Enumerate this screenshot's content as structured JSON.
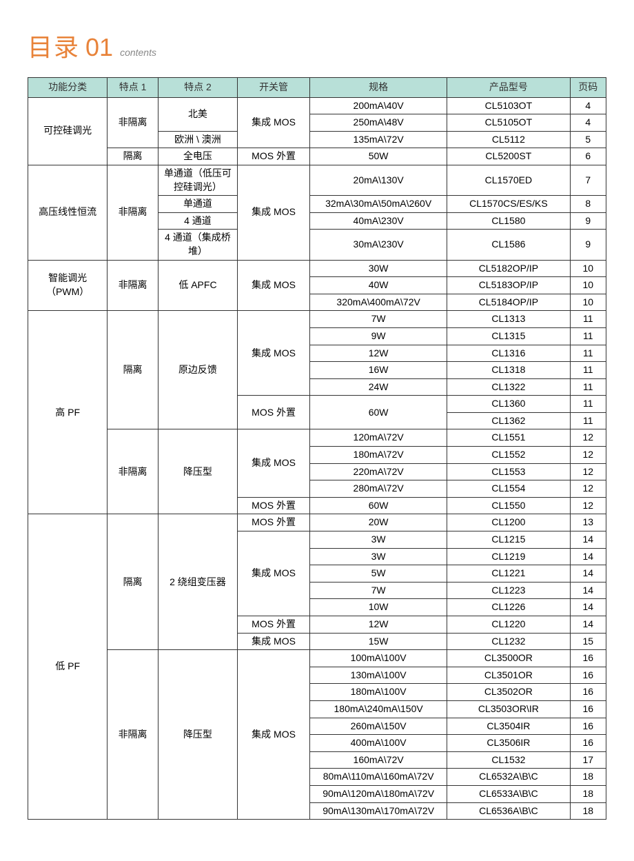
{
  "title": {
    "main": "目录",
    "num": "01",
    "sub": "contents"
  },
  "headers": [
    "功能分类",
    "特点 1",
    "特点 2",
    "开关管",
    "规格",
    "产品型号",
    "页码"
  ],
  "colors": {
    "accent": "#e8833a",
    "header_bg": "#b8e0d8",
    "border": "#333333",
    "subtitle": "#888888"
  },
  "rows": [
    {
      "c1": "可控硅调光",
      "c1r": 4,
      "c2": "非隔离",
      "c2r": 3,
      "c3": "北美",
      "c3r": 2,
      "c4": "集成 MOS",
      "c4r": 3,
      "c5": "200mA\\40V",
      "c6": "CL5103OT",
      "c7": "4"
    },
    {
      "c5": "250mA\\48V",
      "c6": "CL5105OT",
      "c7": "4"
    },
    {
      "c3": "欧洲 \\ 澳洲",
      "c5": "135mA\\72V",
      "c6": "CL5112",
      "c7": "5"
    },
    {
      "c2": "隔离",
      "c3": "全电压",
      "c4": "MOS 外置",
      "c5": "50W",
      "c6": "CL5200ST",
      "c7": "6"
    },
    {
      "c1": "高压线性恒流",
      "c1r": 4,
      "c2": "非隔离",
      "c2r": 4,
      "c3": "单通道（低压可控硅调光）",
      "c4": "集成 MOS",
      "c4r": 4,
      "c5": "20mA\\130V",
      "c6": "CL1570ED",
      "c7": "7"
    },
    {
      "c3": "单通道",
      "c5": "32mA\\30mA\\50mA\\260V",
      "c6": "CL1570CS/ES/KS",
      "c7": "8"
    },
    {
      "c3": "4 通道",
      "c5": "40mA\\230V",
      "c6": "CL1580",
      "c7": "9"
    },
    {
      "c3": "4 通道（集成桥堆）",
      "c5": "30mA\\230V",
      "c6": "CL1586",
      "c7": "9"
    },
    {
      "c1": "智能调光（PWM）",
      "c1r": 3,
      "c2": "非隔离",
      "c2r": 3,
      "c3": "低 APFC",
      "c3r": 3,
      "c4": "集成 MOS",
      "c4r": 3,
      "c5": "30W",
      "c6": "CL5182OP/IP",
      "c7": "10"
    },
    {
      "c5": "40W",
      "c6": "CL5183OP/IP",
      "c7": "10"
    },
    {
      "c5": "320mA\\400mA\\72V",
      "c6": "CL5184OP/IP",
      "c7": "10"
    },
    {
      "c1": "高 PF",
      "c1r": 12,
      "c2": "隔离",
      "c2r": 7,
      "c3": "原边反馈",
      "c3r": 7,
      "c4": "集成 MOS",
      "c4r": 5,
      "c5": "7W",
      "c6": "CL1313",
      "c7": "11"
    },
    {
      "c5": "9W",
      "c6": "CL1315",
      "c7": "11"
    },
    {
      "c5": "12W",
      "c6": "CL1316",
      "c7": "11"
    },
    {
      "c5": "16W",
      "c6": "CL1318",
      "c7": "11"
    },
    {
      "c5": "24W",
      "c6": "CL1322",
      "c7": "11"
    },
    {
      "c4": "MOS 外置",
      "c4r": 2,
      "c5": "60W",
      "c5r": 2,
      "c6": "CL1360",
      "c7": "11"
    },
    {
      "c6": "CL1362",
      "c7": "11"
    },
    {
      "c2": "非隔离",
      "c2r": 5,
      "c3": "降压型",
      "c3r": 5,
      "c4": "集成 MOS",
      "c4r": 4,
      "c5": "120mA\\72V",
      "c6": "CL1551",
      "c7": "12"
    },
    {
      "c5": "180mA\\72V",
      "c6": "CL1552",
      "c7": "12"
    },
    {
      "c5": "220mA\\72V",
      "c6": "CL1553",
      "c7": "12"
    },
    {
      "c5": "280mA\\72V",
      "c6": "CL1554",
      "c7": "12"
    },
    {
      "c4": "MOS 外置",
      "c5": "60W",
      "c6": "CL1550",
      "c7": "12"
    },
    {
      "c1": "低 PF",
      "c1r": 18,
      "c2": "隔离",
      "c2r": 8,
      "c3": "2 绕组变压器",
      "c3r": 8,
      "c4": "MOS 外置",
      "c5": "20W",
      "c6": "CL1200",
      "c7": "13"
    },
    {
      "c4": "集成 MOS",
      "c4r": 5,
      "c5": "3W",
      "c6": "CL1215",
      "c7": "14"
    },
    {
      "c5": "3W",
      "c6": "CL1219",
      "c7": "14"
    },
    {
      "c5": "5W",
      "c6": "CL1221",
      "c7": "14"
    },
    {
      "c5": "7W",
      "c6": "CL1223",
      "c7": "14"
    },
    {
      "c5": "10W",
      "c6": "CL1226",
      "c7": "14"
    },
    {
      "c4": "MOS 外置",
      "c5": "12W",
      "c6": "CL1220",
      "c7": "14"
    },
    {
      "c4": "集成 MOS",
      "c5": "15W",
      "c6": "CL1232",
      "c7": "15"
    },
    {
      "c2": "非隔离",
      "c2r": 10,
      "c3": "降压型",
      "c3r": 10,
      "c4": "集成 MOS",
      "c4r": 10,
      "c5": "100mA\\100V",
      "c6": "CL3500OR",
      "c7": "16"
    },
    {
      "c5": "130mA\\100V",
      "c6": "CL3501OR",
      "c7": "16"
    },
    {
      "c5": "180mA\\100V",
      "c6": "CL3502OR",
      "c7": "16"
    },
    {
      "c5": "180mA\\240mA\\150V",
      "c6": "CL3503OR\\IR",
      "c7": "16"
    },
    {
      "c5": "260mA\\150V",
      "c6": "CL3504IR",
      "c7": "16"
    },
    {
      "c5": "400mA\\100V",
      "c6": "CL3506IR",
      "c7": "16"
    },
    {
      "c5": "160mA\\72V",
      "c6": "CL1532",
      "c7": "17"
    },
    {
      "c5": "80mA\\110mA\\160mA\\72V",
      "c6": "CL6532A\\B\\C",
      "c7": "18"
    },
    {
      "c5": "90mA\\120mA\\180mA\\72V",
      "c6": "CL6533A\\B\\C",
      "c7": "18"
    },
    {
      "c5": "90mA\\130mA\\170mA\\72V",
      "c6": "CL6536A\\B\\C",
      "c7": "18"
    }
  ]
}
